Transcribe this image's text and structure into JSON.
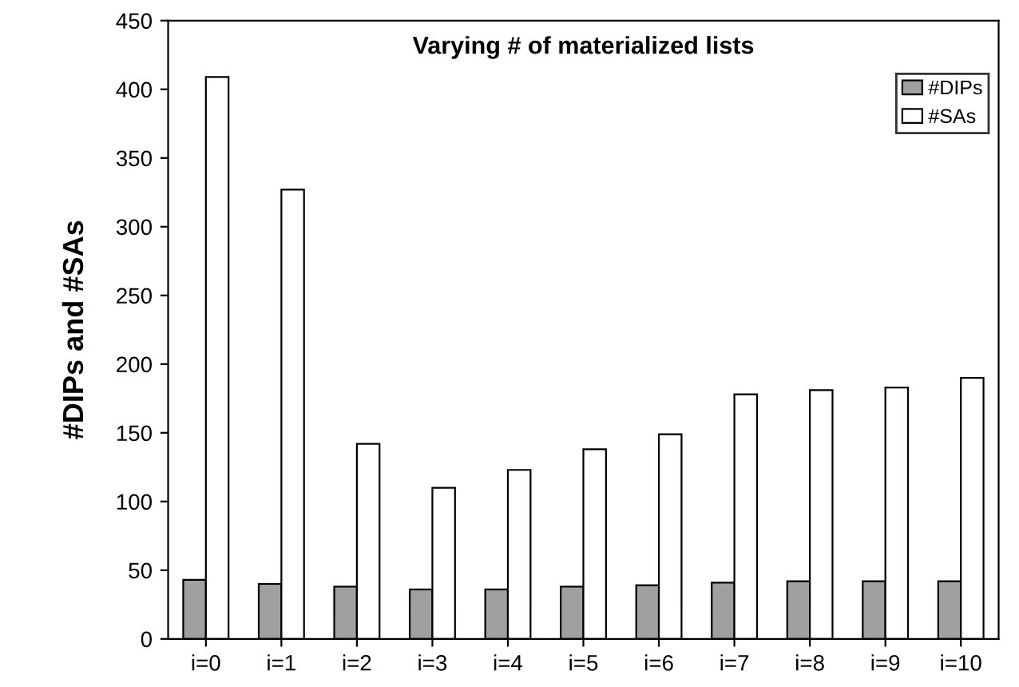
{
  "chart_data": {
    "type": "bar",
    "title": "Varying # of materialized lists",
    "ylabel": "#DIPs and #SAs",
    "categories": [
      "i=0",
      "i=1",
      "i=2",
      "i=3",
      "i=4",
      "i=5",
      "i=6",
      "i=7",
      "i=8",
      "i=9",
      "i=10"
    ],
    "series": [
      {
        "name": "#DIPs",
        "color": "#a0a0a0",
        "values": [
          43,
          40,
          38,
          36,
          36,
          38,
          39,
          41,
          42,
          42,
          42
        ]
      },
      {
        "name": "#SAs",
        "color": "#ffffff",
        "values": [
          409,
          327,
          142,
          110,
          123,
          138,
          149,
          178,
          181,
          183,
          190
        ]
      }
    ],
    "ylim": [
      0,
      450
    ],
    "yticks": [
      0,
      50,
      100,
      150,
      200,
      250,
      300,
      350,
      400,
      450
    ],
    "grid": false,
    "legend": "top right"
  }
}
